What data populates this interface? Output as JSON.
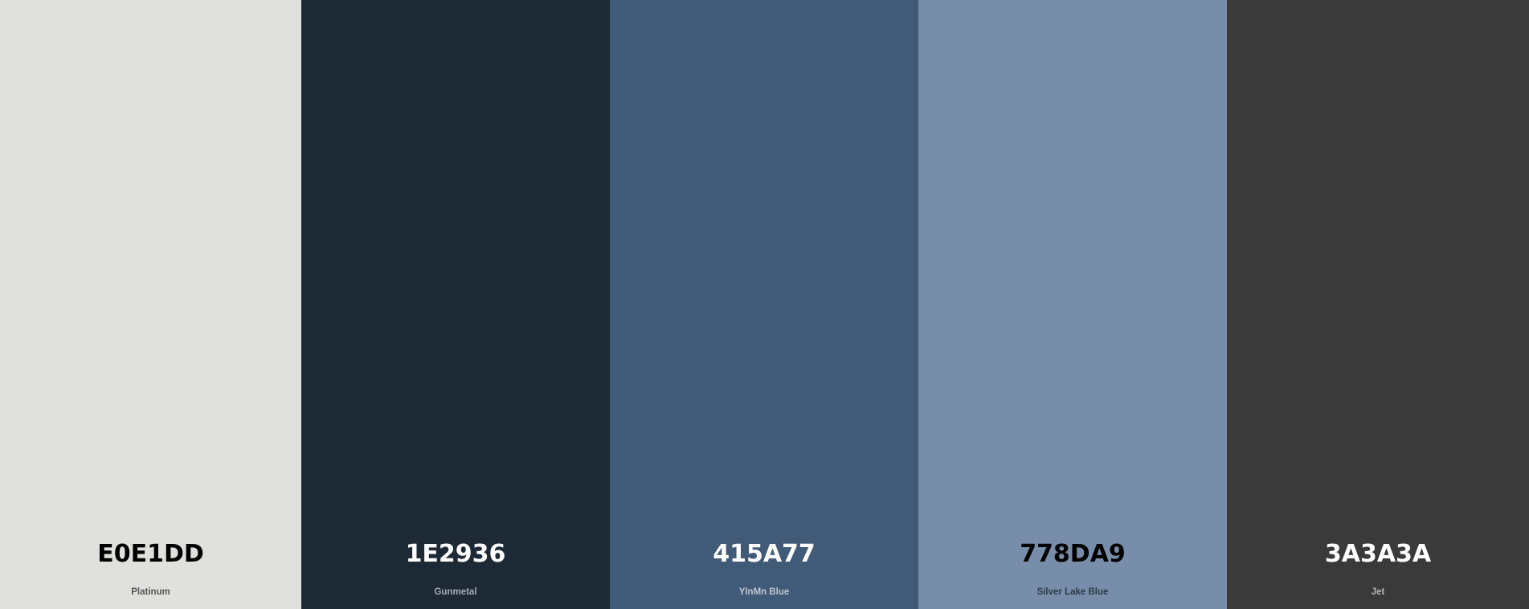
{
  "swatches": [
    {
      "hex": "E0E1DD",
      "name": "Platinum",
      "bg_color": "#E0E1DD",
      "hex_text_color": "#000000",
      "name_text_color": "#54555A"
    },
    {
      "hex": "1E2936",
      "name": "Gunmetal",
      "bg_color": "#1E2936",
      "hex_text_color": "#FFFFFF",
      "name_text_color": "#A6ABB3"
    },
    {
      "hex": "415A77",
      "name": "YInMn Blue",
      "bg_color": "#415A77",
      "hex_text_color": "#FFFFFF",
      "name_text_color": "#BFC7D2"
    },
    {
      "hex": "778DA9",
      "name": "Silver Lake Blue",
      "bg_color": "#778DA9",
      "hex_text_color": "#000000",
      "name_text_color": "#2E3A4A"
    },
    {
      "hex": "3A3A3A",
      "name": "Jet",
      "bg_color": "#3A3A3A",
      "hex_text_color": "#FFFFFF",
      "name_text_color": "#B4B4B4"
    }
  ]
}
